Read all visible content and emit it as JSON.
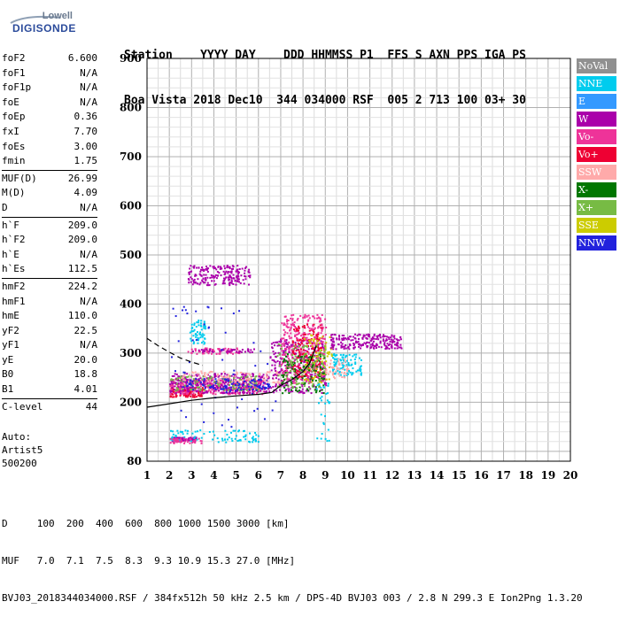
{
  "logo": {
    "line1": "Lowell",
    "line2": "DIGISONDE"
  },
  "header": {
    "line1": "Station    YYYY DAY    DDD HHMMSS P1  FFS S AXN PPS IGA PS",
    "line2": "Boa Vista 2018 Dec10  344 034000 RSF  005 2 713 100 03+ 30"
  },
  "params": [
    {
      "group": [
        {
          "k": "foF2",
          "v": "6.600"
        },
        {
          "k": "foF1",
          "v": "N/A"
        },
        {
          "k": "foF1p",
          "v": "N/A"
        },
        {
          "k": "foE",
          "v": "N/A"
        },
        {
          "k": "foEp",
          "v": "0.36"
        },
        {
          "k": "fxI",
          "v": "7.70"
        },
        {
          "k": "foEs",
          "v": "3.00"
        },
        {
          "k": "fmin",
          "v": "1.75"
        }
      ]
    },
    {
      "group": [
        {
          "k": "MUF(D)",
          "v": "26.99"
        },
        {
          "k": "M(D)",
          "v": "4.09"
        },
        {
          "k": "D",
          "v": "N/A"
        }
      ]
    },
    {
      "group": [
        {
          "k": "h`F",
          "v": "209.0"
        },
        {
          "k": "h`F2",
          "v": "209.0"
        },
        {
          "k": "h`E",
          "v": "N/A"
        },
        {
          "k": "h`Es",
          "v": "112.5"
        }
      ]
    },
    {
      "group": [
        {
          "k": "hmF2",
          "v": "224.2"
        },
        {
          "k": "hmF1",
          "v": "N/A"
        },
        {
          "k": "hmE",
          "v": "110.0"
        },
        {
          "k": "yF2",
          "v": "22.5"
        },
        {
          "k": "yF1",
          "v": "N/A"
        },
        {
          "k": "yE",
          "v": "20.0"
        },
        {
          "k": "B0",
          "v": "18.8"
        },
        {
          "k": "B1",
          "v": "4.01"
        }
      ]
    },
    {
      "group": [
        {
          "k": "C-level",
          "v": "44"
        }
      ]
    }
  ],
  "auto": {
    "l1": "Auto:",
    "l2": "Artist5",
    "l3": "500200"
  },
  "legend": [
    {
      "label": "NoVal",
      "color": "#909090"
    },
    {
      "label": "NNE",
      "color": "#00ccee"
    },
    {
      "label": "E",
      "color": "#3399ff"
    },
    {
      "label": "W",
      "color": "#aa00aa"
    },
    {
      "label": "Vo-",
      "color": "#ee3399"
    },
    {
      "label": "Vo+",
      "color": "#ee0033"
    },
    {
      "label": "SSW",
      "color": "#ffaaaa"
    },
    {
      "label": "X-",
      "color": "#007700"
    },
    {
      "label": "X+",
      "color": "#77bb44"
    },
    {
      "label": "SSE",
      "color": "#cccc00"
    },
    {
      "label": "NNW",
      "color": "#2222dd"
    }
  ],
  "footer": {
    "line1": "D     100  200  400  600  800 1000 1500 3000 [km]",
    "line2": "MUF   7.0  7.1  7.5  8.3  9.3 10.9 15.3 27.0 [MHz]",
    "line3": "BVJ03_2018344034000.RSF / 384fx512h 50 kHz 2.5 km / DPS-4D BVJ03 003 / 2.8 N 299.3 E Ion2Png 1.3.20"
  },
  "chart_data": {
    "type": "scatter",
    "xlim": [
      1,
      20
    ],
    "ylim": [
      80,
      900
    ],
    "x_ticks": [
      1,
      2,
      3,
      4,
      5,
      6,
      7,
      8,
      9,
      10,
      11,
      12,
      13,
      14,
      15,
      16,
      17,
      18,
      19,
      20
    ],
    "y_ticks": [
      80,
      200,
      300,
      400,
      500,
      600,
      700,
      800,
      900
    ],
    "grid": true,
    "clusters": [
      {
        "color": "#aa00aa",
        "x": [
          2.8,
          5.6
        ],
        "y": [
          440,
          480
        ],
        "n": 200
      },
      {
        "color": "#ee3399",
        "x": [
          2.8,
          5.2
        ],
        "y": [
          300,
          312
        ],
        "n": 60
      },
      {
        "color": "#aa00aa",
        "x": [
          3.0,
          5.8
        ],
        "y": [
          303,
          310
        ],
        "n": 40
      },
      {
        "color": "#00ccee",
        "x": [
          2.9,
          3.6
        ],
        "y": [
          320,
          370
        ],
        "n": 60
      },
      {
        "color": "#ee0033",
        "x": [
          2.0,
          3.5
        ],
        "y": [
          212,
          232
        ],
        "n": 120
      },
      {
        "color": "#ee3399",
        "x": [
          2.0,
          6.2
        ],
        "y": [
          218,
          250
        ],
        "n": 300
      },
      {
        "color": "#aa00aa",
        "x": [
          2.0,
          6.5
        ],
        "y": [
          220,
          260
        ],
        "n": 300
      },
      {
        "color": "#77bb44",
        "x": [
          2.0,
          6.0
        ],
        "y": [
          225,
          255
        ],
        "n": 100
      },
      {
        "color": "#2222dd",
        "x": [
          2.5,
          6.5
        ],
        "y": [
          225,
          250
        ],
        "n": 100
      },
      {
        "color": "#ffaaaa",
        "x": [
          2.5,
          7.0
        ],
        "y": [
          240,
          265
        ],
        "n": 100
      },
      {
        "color": "#aa00aa",
        "x": [
          6.5,
          9.0
        ],
        "y": [
          220,
          330
        ],
        "n": 300
      },
      {
        "color": "#ee3399",
        "x": [
          7.0,
          9.0
        ],
        "y": [
          240,
          380
        ],
        "n": 350
      },
      {
        "color": "#ee0033",
        "x": [
          7.5,
          8.8
        ],
        "y": [
          250,
          360
        ],
        "n": 150
      },
      {
        "color": "#cccc00",
        "x": [
          8.0,
          9.3
        ],
        "y": [
          240,
          340
        ],
        "n": 80
      },
      {
        "color": "#007700",
        "x": [
          7.0,
          9.0
        ],
        "y": [
          220,
          300
        ],
        "n": 120
      },
      {
        "color": "#77bb44",
        "x": [
          6.8,
          9.0
        ],
        "y": [
          230,
          320
        ],
        "n": 100
      },
      {
        "color": "#aa00aa",
        "x": [
          9.2,
          12.4
        ],
        "y": [
          310,
          340
        ],
        "n": 220
      },
      {
        "color": "#00ccee",
        "x": [
          9.3,
          10.6
        ],
        "y": [
          255,
          300
        ],
        "n": 100
      },
      {
        "color": "#ffaaaa",
        "x": [
          9.0,
          10.0
        ],
        "y": [
          250,
          290
        ],
        "n": 50
      },
      {
        "color": "#aa00aa",
        "x": [
          2.0,
          3.2
        ],
        "y": [
          122,
          130
        ],
        "n": 80
      },
      {
        "color": "#00ccee",
        "x": [
          2.0,
          6.0
        ],
        "y": [
          120,
          145
        ],
        "n": 90
      },
      {
        "color": "#ee3399",
        "x": [
          2.0,
          3.5
        ],
        "y": [
          118,
          128
        ],
        "n": 40
      },
      {
        "color": "#00ccee",
        "x": [
          8.5,
          9.2
        ],
        "y": [
          120,
          240
        ],
        "n": 30
      },
      {
        "color": "#2222dd",
        "x": [
          2.0,
          6.8
        ],
        "y": [
          150,
          400
        ],
        "n": 60
      }
    ],
    "curves": [
      {
        "style": "solid",
        "x": [
          1.0,
          2.0,
          3.0,
          4.0,
          5.0,
          6.0,
          6.6,
          7.0,
          7.5,
          8.0,
          8.3,
          8.6
        ],
        "y": [
          190,
          197,
          204,
          209,
          213,
          216,
          220,
          234,
          246,
          262,
          280,
          315
        ]
      },
      {
        "style": "dashed",
        "x": [
          1.0,
          1.5,
          2.0,
          2.5,
          3.0,
          3.5
        ],
        "y": [
          330,
          315,
          302,
          290,
          282,
          275
        ]
      }
    ]
  }
}
